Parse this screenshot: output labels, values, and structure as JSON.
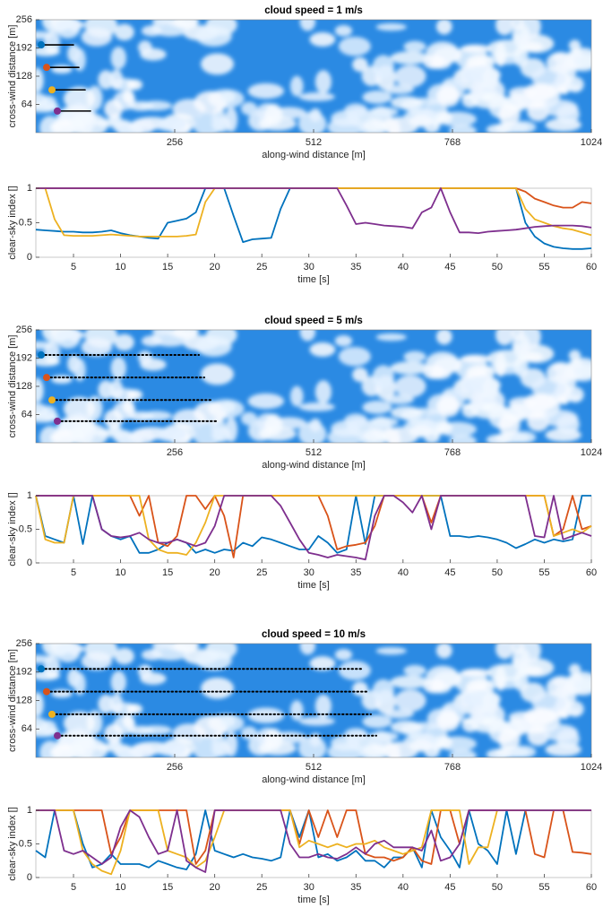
{
  "chart_data": [
    {
      "type": "image",
      "title": "cloud speed = 1 m/s",
      "xlabel": "along-wind distance [m]",
      "ylabel": "cross-wind distance [m]",
      "xlim": [
        0,
        1024
      ],
      "xticks": [
        256,
        512,
        768,
        1024
      ],
      "ylim": [
        0,
        256
      ],
      "yticks": [
        64,
        128,
        192,
        256
      ]
    },
    {
      "type": "line",
      "xlabel": "time [s]",
      "ylabel": "clear-sky index []",
      "x": [
        1,
        2,
        3,
        4,
        5,
        6,
        7,
        8,
        9,
        10,
        11,
        12,
        13,
        14,
        15,
        16,
        17,
        18,
        19,
        20,
        21,
        22,
        23,
        24,
        25,
        26,
        27,
        28,
        29,
        30,
        31,
        32,
        33,
        34,
        35,
        36,
        37,
        38,
        39,
        40,
        41,
        42,
        43,
        44,
        45,
        46,
        47,
        48,
        49,
        50,
        51,
        52,
        53,
        54,
        55,
        56,
        57,
        58,
        59,
        60
      ],
      "xlim": [
        1,
        60
      ],
      "xticks": [
        5,
        10,
        15,
        20,
        25,
        30,
        35,
        40,
        45,
        50,
        55,
        60
      ],
      "ylim": [
        0,
        1
      ],
      "yticks": [
        0,
        0.5,
        1
      ],
      "series": [
        {
          "color": "#0072BD",
          "values": [
            0.4,
            0.39,
            0.38,
            0.37,
            0.37,
            0.36,
            0.36,
            0.37,
            0.39,
            0.35,
            0.32,
            0.3,
            0.28,
            0.27,
            0.5,
            0.53,
            0.56,
            0.65,
            1,
            1,
            1,
            0.6,
            0.22,
            0.26,
            0.27,
            0.28,
            0.7,
            1,
            1,
            1,
            1,
            1,
            1,
            1,
            1,
            1,
            1,
            1,
            1,
            1,
            1,
            1,
            1,
            1,
            1,
            1,
            1,
            1,
            1,
            1,
            1,
            1,
            0.5,
            0.3,
            0.2,
            0.15,
            0.13,
            0.12,
            0.12,
            0.13
          ]
        },
        {
          "color": "#D95319",
          "values": [
            1,
            1,
            1,
            1,
            1,
            1,
            1,
            1,
            1,
            1,
            1,
            1,
            1,
            1,
            1,
            1,
            1,
            1,
            1,
            1,
            1,
            1,
            1,
            1,
            1,
            1,
            1,
            1,
            1,
            1,
            1,
            1,
            1,
            1,
            1,
            1,
            1,
            1,
            1,
            1,
            1,
            1,
            1,
            1,
            1,
            1,
            1,
            1,
            1,
            1,
            1,
            1,
            0.95,
            0.85,
            0.8,
            0.75,
            0.72,
            0.72,
            0.8,
            0.78
          ]
        },
        {
          "color": "#EDB120",
          "values": [
            1,
            1,
            0.55,
            0.32,
            0.31,
            0.31,
            0.31,
            0.32,
            0.33,
            0.32,
            0.31,
            0.3,
            0.3,
            0.3,
            0.3,
            0.3,
            0.31,
            0.33,
            0.8,
            1,
            1,
            1,
            1,
            1,
            1,
            1,
            1,
            1,
            1,
            1,
            1,
            1,
            1,
            1,
            1,
            1,
            1,
            1,
            1,
            1,
            1,
            1,
            1,
            1,
            1,
            1,
            1,
            1,
            1,
            1,
            1,
            1,
            0.7,
            0.55,
            0.5,
            0.45,
            0.42,
            0.4,
            0.36,
            0.32
          ]
        },
        {
          "color": "#7E2F8E",
          "values": [
            1,
            1,
            1,
            1,
            1,
            1,
            1,
            1,
            1,
            1,
            1,
            1,
            1,
            1,
            1,
            1,
            1,
            1,
            1,
            1,
            1,
            1,
            1,
            1,
            1,
            1,
            1,
            1,
            1,
            1,
            1,
            1,
            1,
            0.75,
            0.48,
            0.5,
            0.48,
            0.46,
            0.45,
            0.44,
            0.42,
            0.65,
            0.72,
            1,
            0.65,
            0.36,
            0.36,
            0.35,
            0.37,
            0.38,
            0.39,
            0.4,
            0.42,
            0.44,
            0.45,
            0.46,
            0.46,
            0.46,
            0.45,
            0.43
          ]
        }
      ]
    },
    {
      "type": "image",
      "title": "cloud speed = 5 m/s",
      "xlabel": "along-wind distance [m]",
      "ylabel": "cross-wind distance [m]",
      "xlim": [
        0,
        1024
      ],
      "xticks": [
        256,
        512,
        768,
        1024
      ],
      "ylim": [
        0,
        256
      ],
      "yticks": [
        64,
        128,
        192,
        256
      ]
    },
    {
      "type": "line",
      "xlabel": "time [s]",
      "ylabel": "clear-sky index []",
      "x": [
        1,
        2,
        3,
        4,
        5,
        6,
        7,
        8,
        9,
        10,
        11,
        12,
        13,
        14,
        15,
        16,
        17,
        18,
        19,
        20,
        21,
        22,
        23,
        24,
        25,
        26,
        27,
        28,
        29,
        30,
        31,
        32,
        33,
        34,
        35,
        36,
        37,
        38,
        39,
        40,
        41,
        42,
        43,
        44,
        45,
        46,
        47,
        48,
        49,
        50,
        51,
        52,
        53,
        54,
        55,
        56,
        57,
        58,
        59,
        60
      ],
      "xlim": [
        1,
        60
      ],
      "xticks": [
        5,
        10,
        15,
        20,
        25,
        30,
        35,
        40,
        45,
        50,
        55,
        60
      ],
      "ylim": [
        0,
        1
      ],
      "yticks": [
        0,
        0.5,
        1
      ],
      "series": [
        {
          "color": "#0072BD",
          "values": [
            1,
            0.4,
            0.35,
            0.3,
            1,
            0.28,
            1,
            0.5,
            0.4,
            0.35,
            0.4,
            0.15,
            0.15,
            0.2,
            0.3,
            0.35,
            0.3,
            0.15,
            0.2,
            0.15,
            0.2,
            0.18,
            0.3,
            0.25,
            0.38,
            0.35,
            0.3,
            0.25,
            0.2,
            0.2,
            0.4,
            0.3,
            0.15,
            0.2,
            1,
            0.28,
            1,
            1,
            1,
            1,
            1,
            1,
            1,
            1,
            0.4,
            0.4,
            0.38,
            0.4,
            0.38,
            0.35,
            0.3,
            0.22,
            0.28,
            0.35,
            0.3,
            0.35,
            0.32,
            0.35,
            1,
            1
          ]
        },
        {
          "color": "#D95319",
          "values": [
            1,
            1,
            1,
            1,
            1,
            1,
            1,
            1,
            1,
            1,
            1,
            0.7,
            1,
            0.3,
            0.25,
            0.4,
            1,
            1,
            0.8,
            1,
            0.7,
            0.08,
            1,
            1,
            1,
            1,
            1,
            1,
            1,
            1,
            1,
            0.7,
            0.2,
            0.25,
            0.27,
            0.3,
            0.55,
            1,
            1,
            1,
            1,
            1,
            0.6,
            1,
            1,
            1,
            1,
            1,
            1,
            1,
            1,
            1,
            1,
            1,
            1,
            0.4,
            0.5,
            1,
            0.5,
            0.55
          ]
        },
        {
          "color": "#EDB120",
          "values": [
            1,
            0.35,
            0.3,
            0.3,
            1,
            1,
            1,
            1,
            1,
            1,
            1,
            1,
            0.35,
            0.2,
            0.15,
            0.15,
            0.12,
            0.3,
            0.6,
            1,
            1,
            1,
            1,
            1,
            1,
            1,
            1,
            1,
            1,
            1,
            1,
            1,
            1,
            1,
            1,
            1,
            1,
            1,
            1,
            1,
            1,
            1,
            1,
            1,
            1,
            1,
            1,
            1,
            1,
            1,
            1,
            1,
            1,
            1,
            1,
            0.4,
            0.45,
            0.5,
            0.45,
            0.55
          ]
        },
        {
          "color": "#7E2F8E",
          "values": [
            1,
            1,
            1,
            1,
            1,
            1,
            1,
            0.5,
            0.4,
            0.38,
            0.4,
            0.45,
            0.35,
            0.3,
            0.3,
            0.35,
            0.3,
            0.25,
            0.3,
            0.55,
            1,
            1,
            1,
            1,
            1,
            1,
            0.85,
            0.6,
            0.35,
            0.15,
            0.12,
            0.08,
            0.12,
            0.1,
            0.08,
            0.05,
            0.7,
            1,
            1,
            0.9,
            0.75,
            1,
            0.5,
            1,
            1,
            1,
            1,
            1,
            1,
            1,
            1,
            1,
            1,
            0.4,
            0.38,
            1,
            0.35,
            0.4,
            0.45,
            0.4
          ]
        }
      ]
    },
    {
      "type": "image",
      "title": "cloud speed = 10 m/s",
      "xlabel": "along-wind distance [m]",
      "ylabel": "cross-wind distance [m]",
      "xlim": [
        0,
        1024
      ],
      "xticks": [
        256,
        512,
        768,
        1024
      ],
      "ylim": [
        0,
        256
      ],
      "yticks": [
        64,
        128,
        192,
        256
      ]
    },
    {
      "type": "line",
      "xlabel": "time [s]",
      "ylabel": "clear-sky index []",
      "x": [
        1,
        2,
        3,
        4,
        5,
        6,
        7,
        8,
        9,
        10,
        11,
        12,
        13,
        14,
        15,
        16,
        17,
        18,
        19,
        20,
        21,
        22,
        23,
        24,
        25,
        26,
        27,
        28,
        29,
        30,
        31,
        32,
        33,
        34,
        35,
        36,
        37,
        38,
        39,
        40,
        41,
        42,
        43,
        44,
        45,
        46,
        47,
        48,
        49,
        50,
        51,
        52,
        53,
        54,
        55,
        56,
        57,
        58,
        59,
        60
      ],
      "xlim": [
        1,
        60
      ],
      "xticks": [
        5,
        10,
        15,
        20,
        25,
        30,
        35,
        40,
        45,
        50,
        55,
        60
      ],
      "ylim": [
        0,
        1
      ],
      "yticks": [
        0,
        0.5,
        1
      ],
      "series": [
        {
          "color": "#0072BD",
          "values": [
            0.4,
            0.3,
            1,
            1,
            1,
            0.5,
            0.15,
            0.2,
            0.35,
            0.2,
            0.2,
            0.2,
            0.15,
            0.25,
            0.2,
            0.15,
            0.12,
            0.35,
            1,
            0.4,
            0.35,
            0.3,
            0.35,
            0.3,
            0.28,
            0.25,
            0.3,
            1,
            0.6,
            1,
            0.3,
            0.35,
            0.25,
            0.3,
            0.4,
            0.25,
            0.25,
            0.15,
            0.3,
            0.3,
            0.45,
            0.15,
            1,
            0.6,
            0.4,
            0.15,
            1,
            0.5,
            0.4,
            0.2,
            1,
            0.35,
            1,
            1,
            1,
            1,
            1,
            1,
            1,
            1
          ]
        },
        {
          "color": "#D95319",
          "values": [
            1,
            1,
            1,
            1,
            1,
            1,
            1,
            1,
            0.35,
            0.6,
            1,
            1,
            1,
            1,
            1,
            1,
            1,
            0.2,
            0.4,
            1,
            1,
            1,
            1,
            1,
            1,
            1,
            1,
            1,
            0.5,
            1,
            0.6,
            1,
            0.6,
            1,
            1,
            0.35,
            0.3,
            0.3,
            0.25,
            0.3,
            0.45,
            0.25,
            0.2,
            1,
            1,
            0.5,
            1,
            1,
            1,
            1,
            1,
            1,
            1,
            0.35,
            0.3,
            1,
            1,
            0.38,
            0.37,
            0.35
          ]
        },
        {
          "color": "#EDB120",
          "values": [
            1,
            1,
            1,
            1,
            1,
            0.4,
            0.2,
            0.1,
            0.05,
            0.4,
            1,
            1,
            1,
            1,
            0.4,
            0.35,
            0.3,
            0.15,
            0.25,
            0.6,
            1,
            1,
            1,
            1,
            1,
            1,
            1,
            1,
            0.45,
            0.55,
            0.5,
            0.45,
            0.5,
            0.45,
            0.5,
            0.5,
            0.55,
            0.45,
            0.4,
            0.35,
            0.4,
            0.45,
            1,
            1,
            1,
            1,
            0.2,
            0.45,
            0.45,
            1,
            1,
            1,
            1,
            1,
            1,
            1,
            1,
            1,
            1,
            1
          ]
        },
        {
          "color": "#7E2F8E",
          "values": [
            1,
            1,
            1,
            0.4,
            0.35,
            0.4,
            0.3,
            0.2,
            0.3,
            0.75,
            1,
            0.9,
            0.6,
            0.35,
            0.4,
            1,
            0.25,
            0.15,
            0.08,
            1,
            1,
            1,
            1,
            1,
            1,
            1,
            1,
            0.5,
            0.3,
            0.3,
            0.35,
            0.3,
            0.28,
            0.35,
            0.45,
            0.35,
            0.5,
            0.55,
            0.45,
            0.45,
            0.45,
            0.4,
            0.7,
            0.25,
            0.3,
            0.5,
            1,
            1,
            1,
            1,
            1,
            1,
            1,
            1,
            1,
            1,
            1,
            1,
            1,
            1
          ]
        }
      ]
    }
  ]
}
